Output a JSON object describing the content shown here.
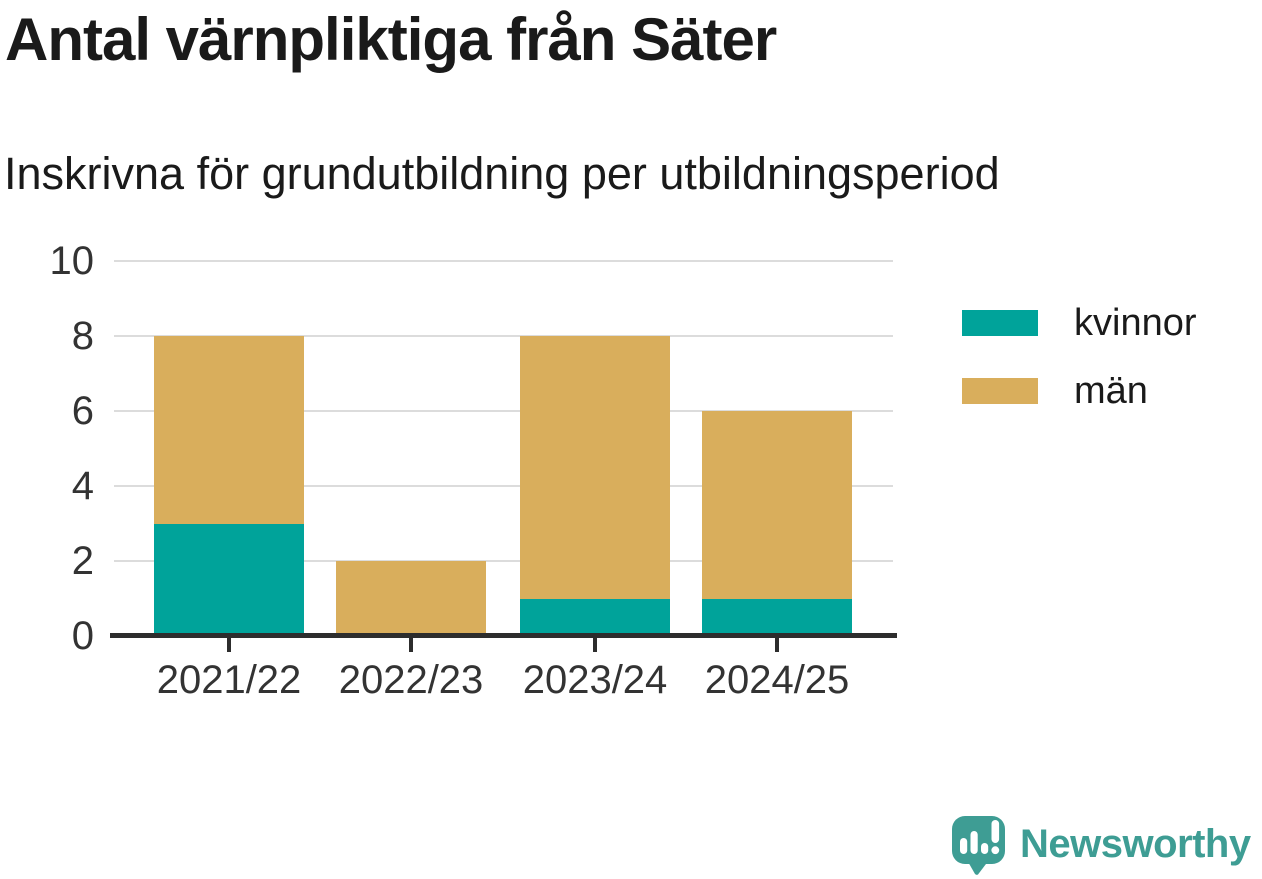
{
  "header": {
    "title": "Antal värnpliktiga från Säter",
    "subtitle": "Inskrivna för grundutbildning per utbildningsperiod"
  },
  "chart_data": {
    "type": "bar",
    "stacked": true,
    "title": "Antal värnpliktiga från Säter",
    "subtitle": "Inskrivna för grundutbildning per utbildningsperiod",
    "categories": [
      "2021/22",
      "2022/23",
      "2023/24",
      "2024/25"
    ],
    "series": [
      {
        "name": "kvinnor",
        "color": "#00a39a",
        "values": [
          3,
          0,
          1,
          1
        ]
      },
      {
        "name": "män",
        "color": "#d9ae5c",
        "values": [
          5,
          2,
          7,
          5
        ]
      }
    ],
    "xlabel": "",
    "ylabel": "",
    "ylim": [
      0,
      10
    ],
    "yticks": [
      0,
      2,
      4,
      6,
      8,
      10
    ],
    "grid": true,
    "legend_position": "right"
  },
  "styles": {
    "text_color": "#1a1a1a",
    "axis_text_color": "#333333",
    "gridline_color": "#dcdcdc",
    "axis_line_color": "#2d2d2d"
  },
  "branding": {
    "logo_text": "Newsworthy",
    "logo_color": "#3e9d94",
    "logo_icon": "speech-bubble-bar-chart-exclamation-icon"
  }
}
